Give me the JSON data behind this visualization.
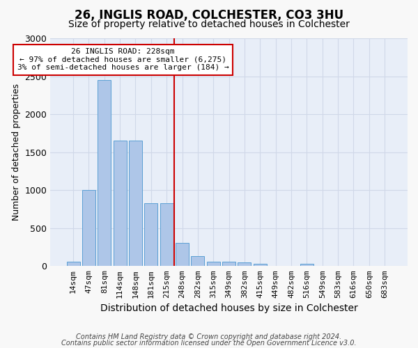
{
  "title1": "26, INGLIS ROAD, COLCHESTER, CO3 3HU",
  "title2": "Size of property relative to detached houses in Colchester",
  "xlabel": "Distribution of detached houses by size in Colchester",
  "ylabel": "Number of detached properties",
  "footer1": "Contains HM Land Registry data © Crown copyright and database right 2024.",
  "footer2": "Contains public sector information licensed under the Open Government Licence v3.0.",
  "annotation_title": "26 INGLIS ROAD: 228sqm",
  "annotation_line1": "← 97% of detached houses are smaller (6,275)",
  "annotation_line2": "3% of semi-detached houses are larger (184) →",
  "bar_values": [
    60,
    1000,
    2450,
    1650,
    1650,
    830,
    830,
    305,
    130,
    55,
    55,
    50,
    30,
    5,
    0,
    30,
    0,
    0,
    0,
    0,
    0
  ],
  "categories": [
    "14sqm",
    "47sqm",
    "81sqm",
    "114sqm",
    "148sqm",
    "181sqm",
    "215sqm",
    "248sqm",
    "282sqm",
    "315sqm",
    "349sqm",
    "382sqm",
    "415sqm",
    "449sqm",
    "482sqm",
    "516sqm",
    "549sqm",
    "583sqm",
    "616sqm",
    "650sqm",
    "683sqm"
  ],
  "bar_color": "#aec6e8",
  "bar_edge_color": "#5a9fd4",
  "vline_color": "#cc0000",
  "grid_color": "#d0d8e8",
  "bg_color": "#e8eef8",
  "fig_bg_color": "#f8f8f8",
  "ylim": [
    0,
    3000
  ],
  "annotation_box_color": "#ffffff",
  "annotation_box_edge": "#cc0000",
  "vline_pos": 6.5,
  "title1_fontsize": 12,
  "title2_fontsize": 10,
  "ylabel_fontsize": 9,
  "xlabel_fontsize": 10,
  "tick_fontsize": 8,
  "footer_fontsize": 7,
  "annot_fontsize": 8
}
